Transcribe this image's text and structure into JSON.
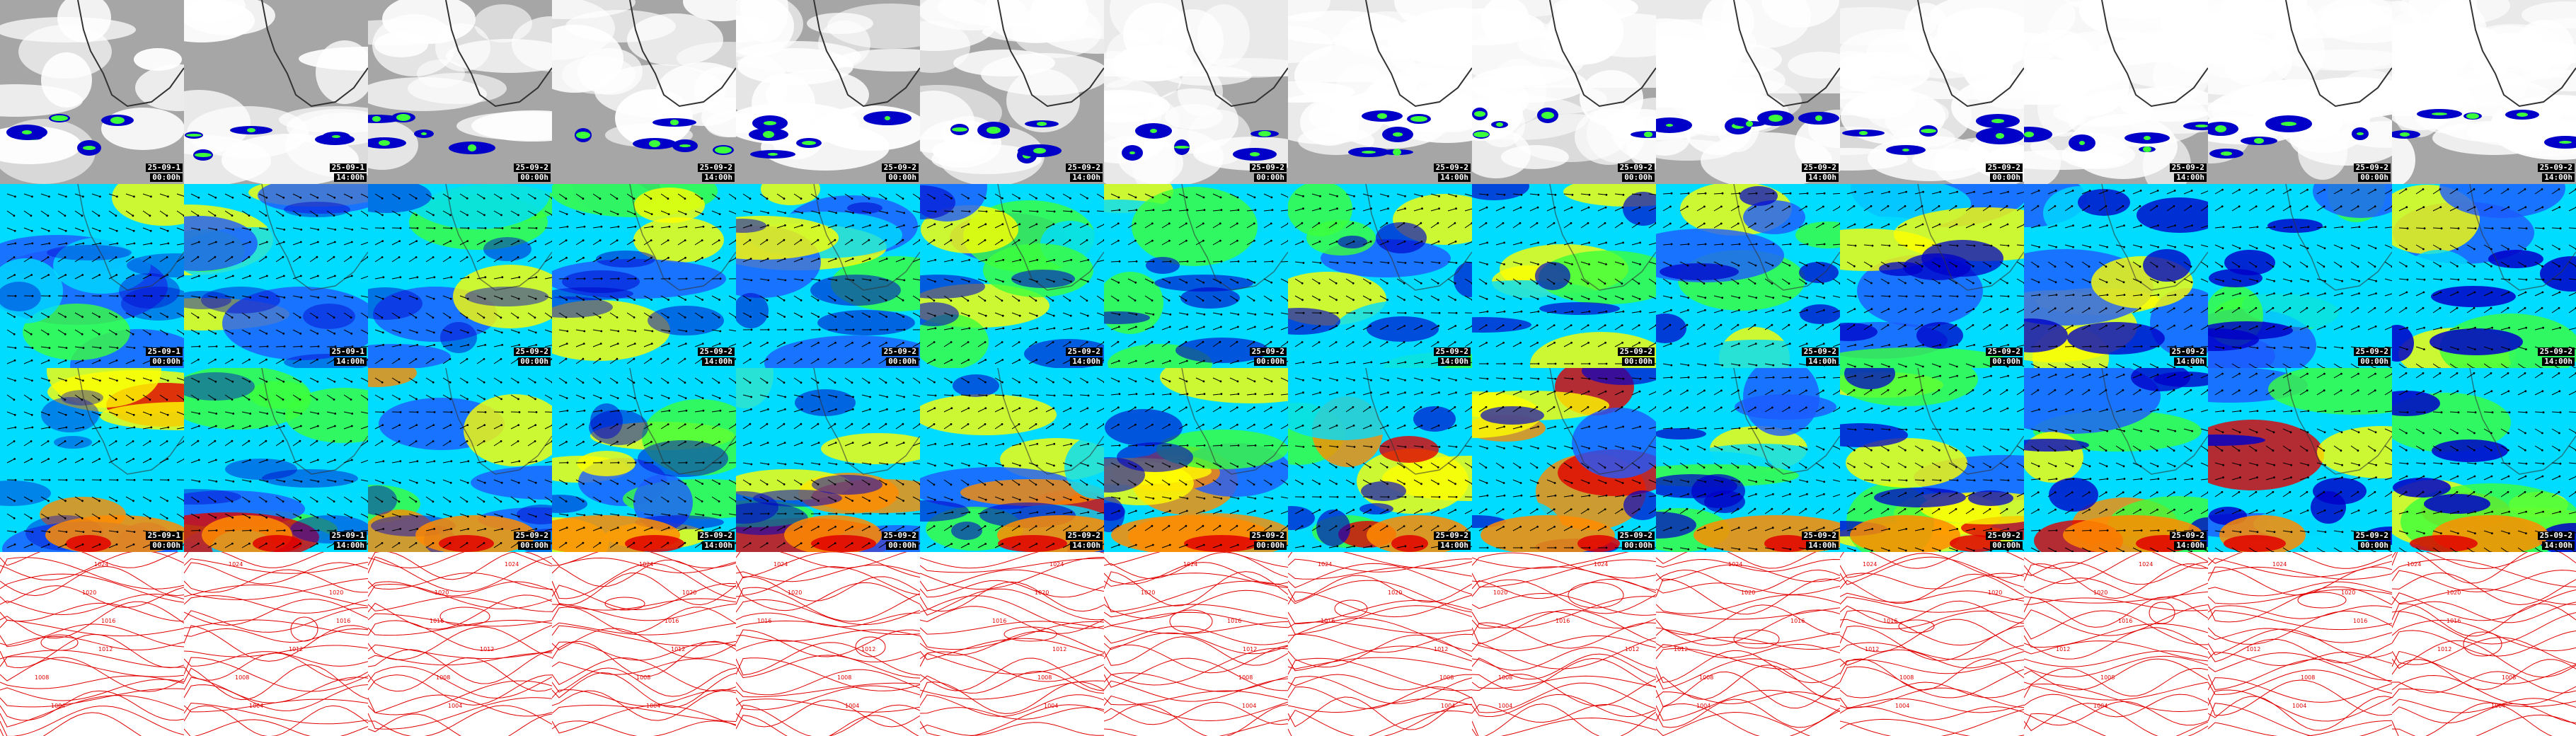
{
  "columns": [
    {
      "date": "25-09-1",
      "time": "00:00h"
    },
    {
      "date": "25-09-1",
      "time": "14:00h"
    },
    {
      "date": "25-09-2",
      "time": "00:00h"
    },
    {
      "date": "25-09-2",
      "time": "14:00h"
    },
    {
      "date": "25-09-2",
      "time": "00:00h"
    },
    {
      "date": "25-09-2",
      "time": "14:00h"
    },
    {
      "date": "25-09-2",
      "time": "00:00h"
    },
    {
      "date": "25-09-2",
      "time": "14:00h"
    },
    {
      "date": "25-09-2",
      "time": "00:00h"
    },
    {
      "date": "25-09-2",
      "time": "14:00h"
    },
    {
      "date": "25-09-2",
      "time": "00:00h"
    },
    {
      "date": "25-09-2",
      "time": "14:00h"
    },
    {
      "date": "25-09-2",
      "time": "00:00h"
    },
    {
      "date": "25-09-2",
      "time": "14:00h"
    }
  ],
  "rows": [
    {
      "product": "cloud",
      "show_label": true
    },
    {
      "product": "wind",
      "show_label": true
    },
    {
      "product": "wind",
      "show_label": true
    },
    {
      "product": "pressure",
      "show_label": false
    }
  ],
  "isobar_labels": [
    "1024",
    "1020",
    "1016",
    "1012",
    "1008",
    "1004"
  ],
  "colors": {
    "cloud_grey": "#a6a6a6",
    "cloud_white": "#ffffff",
    "coast": "#333333",
    "wind_deep": "#0000c8",
    "wind_blue": "#1e5aff",
    "wind_cyan": "#00dcff",
    "wind_green": "#3cff3c",
    "wind_yellow": "#ffff00",
    "wind_orange": "#ff8c00",
    "wind_red": "#e10000",
    "arrow": "#000000",
    "isobar": "#e00000"
  }
}
